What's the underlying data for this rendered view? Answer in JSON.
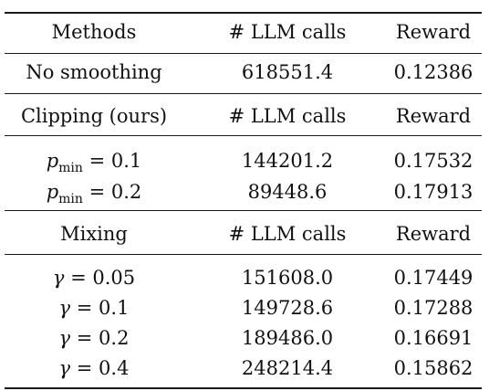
{
  "table": {
    "header": {
      "method": "Methods",
      "calls": "# LLM calls",
      "reward": "Reward"
    },
    "no_smoothing": {
      "method": "No smoothing",
      "calls": "618551.4",
      "reward": "0.12386"
    },
    "clipping": {
      "header": {
        "method": "Clipping (ours)",
        "calls": "# LLM calls",
        "reward": "Reward"
      },
      "rows": [
        {
          "symbol": "p",
          "subscript": "min",
          "value": "= 0.1",
          "calls": "144201.2",
          "reward": "0.17532"
        },
        {
          "symbol": "p",
          "subscript": "min",
          "value": "= 0.2",
          "calls": "89448.6",
          "reward": "0.17913"
        }
      ]
    },
    "mixing": {
      "header": {
        "method": "Mixing",
        "calls": "# LLM calls",
        "reward": "Reward"
      },
      "rows": [
        {
          "symbol": "γ",
          "value": "= 0.05",
          "calls": "151608.0",
          "reward": "0.17449"
        },
        {
          "symbol": "γ",
          "value": "= 0.1",
          "calls": "149728.6",
          "reward": "0.17288"
        },
        {
          "symbol": "γ",
          "value": "= 0.2",
          "calls": "189486.0",
          "reward": "0.16691"
        },
        {
          "symbol": "γ",
          "value": "= 0.4",
          "calls": "248214.4",
          "reward": "0.15862"
        }
      ]
    }
  }
}
